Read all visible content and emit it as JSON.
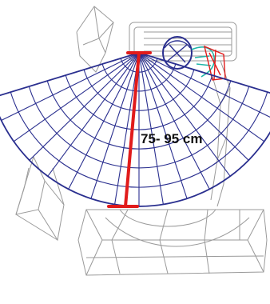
{
  "figure": {
    "measurement_label": "75- 95 cm",
    "colors": {
      "reach_zone": "#2a2f8f",
      "measurement": "#e11b1b",
      "hardware": "#9a9a9a",
      "head_outline": "#2a2f8f",
      "neck_detail": "#1fb5a8",
      "red_detail": "#e11b1b"
    }
  }
}
